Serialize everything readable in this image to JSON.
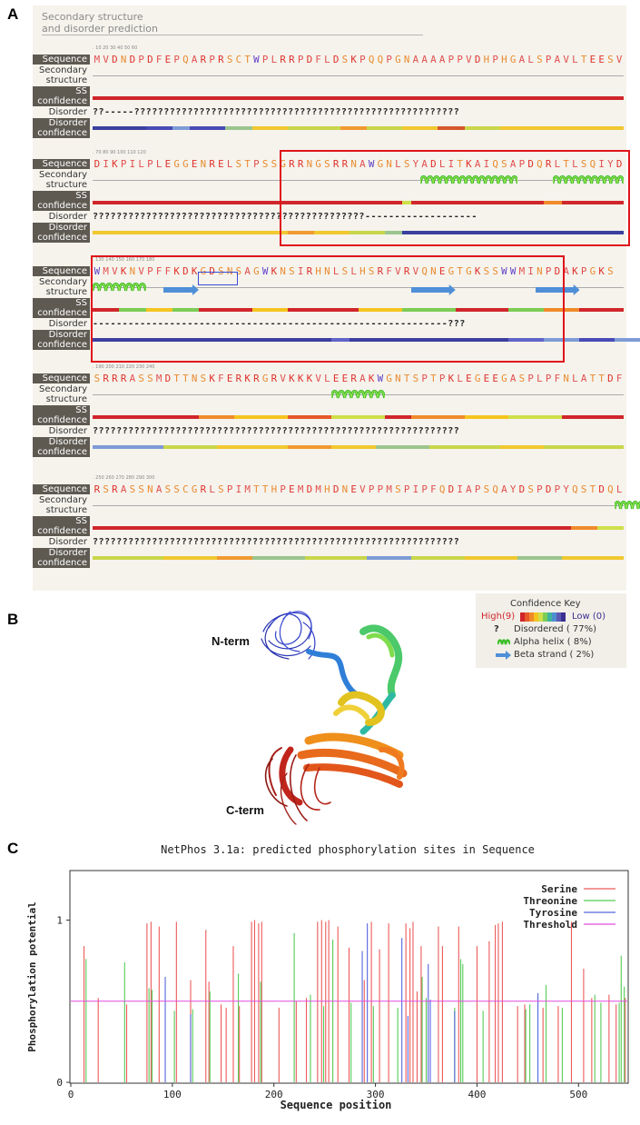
{
  "panels": {
    "a": "A",
    "b": "B",
    "c": "C"
  },
  "panel_a": {
    "header_line1": "Secondary structure",
    "header_line2": "and disorder prediction",
    "row_labels": {
      "sequence": "Sequence",
      "secondary1": "Secondary",
      "secondary2": "structure",
      "ss1": "SS",
      "ss2": "confidence",
      "disorder": "Disorder",
      "dconf1": "Disorder",
      "dconf2": "confidence"
    },
    "blocks": [
      {
        "ruler": ".         10         20         30         40         50         60",
        "sequence": "MVDNDPDFEPQARPRSCTWPLRRPDFLDSKPQQPGNAAAAPPVDHPHGALSPAVLTEESV",
        "disorder": "??-----???????????????????????????????????????????????????????"
      },
      {
        "ruler": ".         70         80         90        100        110        120",
        "sequence": "DIKPILPLEGGENRELSTPSSGRRNGSRRNAWGNLSYADLITKAIQSAPDQRLTLSQIYD",
        "disorder": "??????????????????????????????????????????????-------------------"
      },
      {
        "ruler": ".        130        140        150        160        170        180",
        "sequence": "WMVKNVPFFKDKGDSNSAGWKNSIRHNLSLHSRFVRVQNEGTGKSSWWMINPDAKPGKS",
        "disorder": "------------------------------------------------------------???"
      },
      {
        "ruler": ".        190        200        210        220        230        240",
        "sequence": "SRRRASSMDTTNSKFERKRGRVKKKVLEERAKWGNTSPTPKLEGEEGASPLPFNLATTDF",
        "disorder": "??????????????????????????????????????????????????????????????"
      },
      {
        "ruler": ".        250        260        270        280        290        300",
        "sequence": "RSRASSNASSCGRLSPIMTTHPEMDMHDNEVPPMSPIPFQDIAPSQAYDSPDPYQSTDQL",
        "disorder": "??????????????????????????????????????????????????????????????"
      }
    ]
  },
  "confidence_key": {
    "title": "Confidence Key",
    "high": "High(9)",
    "low": "Low (0)",
    "disordered_symbol": "?",
    "disordered": "Disordered ( 77%)",
    "helix": "Alpha helix ( 8%)",
    "strand": "Beta strand ( 2%)",
    "scale_colors": [
      "#d0262b",
      "#e8582a",
      "#f08a2a",
      "#f5c41f",
      "#cfe04a",
      "#7dcc55",
      "#3fb59e",
      "#4f8fd0",
      "#5a5ab5",
      "#3b2f8f"
    ]
  },
  "panel_b": {
    "n_term": "N-term",
    "c_term": "C-term"
  },
  "chart_data": {
    "type": "bar",
    "title": "NetPhos 3.1a: predicted phosphorylation sites in Sequence",
    "xlabel": "Sequence position",
    "ylabel": "Phosphorylation potential",
    "xlim": [
      0,
      548
    ],
    "ylim": [
      0,
      1.3
    ],
    "xticks": [
      0,
      100,
      200,
      300,
      400,
      500
    ],
    "yticks": [
      0,
      1
    ],
    "threshold": 0.5,
    "legend_position": "top-right",
    "series": [
      {
        "name": "Serine",
        "color": "#ee5a5a",
        "x": [
          13,
          27,
          55,
          75,
          79,
          87,
          104,
          118,
          133,
          136,
          148,
          153,
          160,
          166,
          178,
          181,
          185,
          188,
          205,
          222,
          232,
          243,
          247,
          251,
          254,
          263,
          274,
          289,
          296,
          304,
          313,
          330,
          334,
          337,
          341,
          345,
          350,
          362,
          366,
          382,
          400,
          412,
          418,
          421,
          425,
          440,
          447,
          465,
          480,
          493,
          505,
          513,
          530,
          537,
          546
        ],
        "y": [
          0.84,
          0.52,
          0.48,
          0.98,
          0.99,
          0.96,
          0.99,
          0.63,
          0.94,
          0.62,
          0.48,
          0.46,
          0.84,
          0.47,
          0.99,
          1.0,
          0.98,
          0.99,
          0.46,
          0.5,
          0.52,
          0.99,
          1.0,
          0.99,
          1.0,
          0.96,
          0.83,
          0.63,
          0.99,
          0.82,
          0.98,
          0.98,
          0.95,
          0.99,
          0.56,
          0.84,
          0.51,
          0.96,
          0.84,
          0.96,
          0.84,
          0.87,
          0.97,
          0.98,
          0.99,
          0.47,
          0.48,
          0.46,
          0.47,
          0.99,
          0.7,
          0.52,
          0.54,
          0.48,
          0.52
        ]
      },
      {
        "name": "Threonine",
        "color": "#55cc55",
        "x": [
          15,
          53,
          77,
          80,
          102,
          120,
          137,
          165,
          187,
          220,
          236,
          249,
          258,
          276,
          298,
          322,
          346,
          350,
          378,
          384,
          386,
          406,
          448,
          452,
          468,
          484,
          516,
          522,
          540,
          542,
          545
        ],
        "y": [
          0.76,
          0.74,
          0.58,
          0.57,
          0.44,
          0.45,
          0.56,
          0.67,
          0.62,
          0.92,
          0.54,
          0.47,
          0.88,
          0.49,
          0.47,
          0.46,
          0.65,
          0.52,
          0.46,
          0.76,
          0.73,
          0.44,
          0.45,
          0.48,
          0.6,
          0.46,
          0.54,
          0.49,
          0.49,
          0.78,
          0.59
        ]
      },
      {
        "name": "Tyrosine",
        "color": "#5566dd",
        "x": [
          93,
          118,
          287,
          292,
          326,
          332,
          352,
          354,
          378,
          460
        ],
        "y": [
          0.65,
          0.42,
          0.81,
          0.98,
          0.89,
          0.41,
          0.73,
          0.51,
          0.44,
          0.55
        ]
      }
    ]
  }
}
